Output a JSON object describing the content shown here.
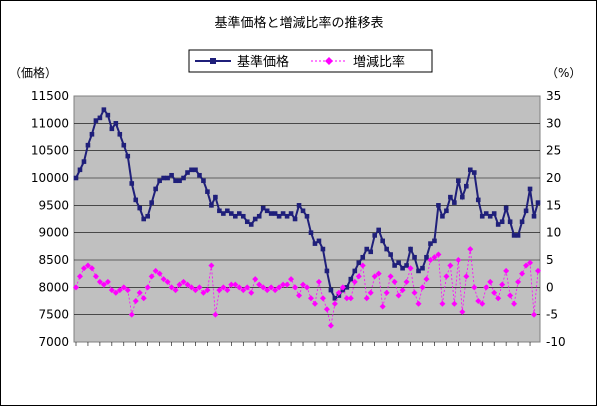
{
  "chart_data": {
    "type": "line",
    "title": "基準価格と増減比率の推移表",
    "y_left_label": "（価格）",
    "y_right_label": "（%）",
    "y_left_ticks": [
      "11500",
      "11000",
      "10500",
      "10000",
      "9500",
      "9000",
      "8500",
      "8000",
      "7500",
      "7000"
    ],
    "y_right_ticks": [
      "35",
      "30",
      "25",
      "20",
      "15",
      "10",
      "5",
      "0",
      "-5",
      "-10"
    ],
    "ylim_left": [
      7000,
      11500
    ],
    "ylim_right": [
      -10,
      35
    ],
    "x_axis_labels": "dates (illegible, rotated)",
    "legend": {
      "position": "top",
      "entries": [
        "基準価格",
        "増減比率"
      ]
    },
    "series": [
      {
        "name": "基準価格",
        "color": "#1f1f7a",
        "marker": "square",
        "values": [
          10000,
          10150,
          10300,
          10600,
          10800,
          11050,
          11100,
          11250,
          11150,
          10900,
          11000,
          10800,
          10600,
          10400,
          9900,
          9600,
          9450,
          9250,
          9300,
          9550,
          9800,
          9950,
          10000,
          10000,
          10050,
          9950,
          9950,
          10000,
          10100,
          10150,
          10150,
          10050,
          9950,
          9750,
          9500,
          9650,
          9400,
          9350,
          9400,
          9350,
          9300,
          9350,
          9300,
          9200,
          9150,
          9250,
          9300,
          9450,
          9400,
          9350,
          9350,
          9300,
          9350,
          9300,
          9350,
          9250,
          9500,
          9400,
          9300,
          9000,
          8800,
          8850,
          8700,
          8300,
          7950,
          7800,
          7850,
          7950,
          8000,
          8150,
          8300,
          8450,
          8550,
          8700,
          8650,
          8950,
          9050,
          8850,
          8700,
          8600,
          8400,
          8450,
          8350,
          8400,
          8700,
          8550,
          8300,
          8350,
          8550,
          8800,
          8850,
          9500,
          9300,
          9400,
          9650,
          9550,
          9950,
          9650,
          9850,
          10150,
          10100,
          9600,
          9300,
          9350,
          9300,
          9350,
          9150,
          9200,
          9450,
          9200,
          8950,
          8950,
          9200,
          9400,
          9800,
          9300,
          9550
        ]
      },
      {
        "name": "増減比率",
        "color": "#ff00ff",
        "marker": "diamond",
        "values": [
          0,
          2,
          3.5,
          4,
          3.5,
          2,
          1,
          0.5,
          1,
          -0.5,
          -1,
          -0.5,
          0,
          -0.5,
          -5,
          -2.5,
          -1,
          -2,
          0,
          2,
          3,
          2.5,
          1.5,
          1,
          0,
          -0.5,
          0.5,
          1,
          0.5,
          0,
          -0.5,
          0,
          -1,
          -0.5,
          4,
          -5,
          -0.5,
          0,
          -0.5,
          0.5,
          0.5,
          0,
          -0.5,
          0,
          -1,
          1.5,
          0.5,
          0,
          -0.5,
          0,
          -0.5,
          0,
          0.5,
          0.5,
          1.5,
          0,
          -1.5,
          0.5,
          0,
          -2,
          -3,
          1,
          -2,
          -4,
          -7,
          -3,
          -1,
          0,
          -2,
          -2,
          1,
          2,
          4,
          -2,
          -1,
          2,
          2.5,
          -3.5,
          -1,
          2,
          1,
          -1.5,
          -0.5,
          1,
          3.5,
          -1,
          -3,
          0,
          1.5,
          5,
          5.5,
          6,
          -3,
          2,
          4,
          -3,
          5,
          -4.5,
          2,
          7,
          0,
          -2.5,
          -3,
          0,
          1,
          -1,
          -2,
          0.5,
          3,
          -1.5,
          -3,
          1,
          2.5,
          4,
          4.5,
          -5,
          3
        ]
      }
    ]
  }
}
